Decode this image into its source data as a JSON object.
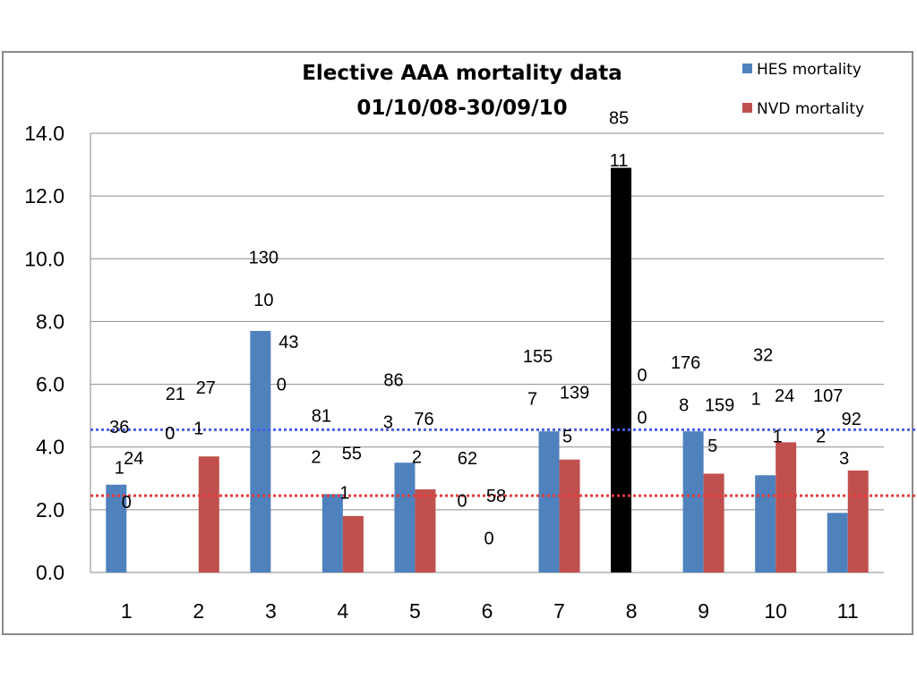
{
  "chart_data": {
    "type": "bar",
    "title": [
      "Elective AAA mortality data",
      "01/10/08-30/09/10"
    ],
    "categories": [
      "1",
      "2",
      "3",
      "4",
      "5",
      "6",
      "7",
      "8",
      "9",
      "10",
      "11"
    ],
    "ylim": [
      0,
      14
    ],
    "yticks": [
      "0.0",
      "2.0",
      "4.0",
      "6.0",
      "8.0",
      "10.0",
      "12.0",
      "14.0"
    ],
    "series": [
      {
        "name": "HES mortality",
        "color": "#4f81bd",
        "values": [
          2.8,
          0,
          7.7,
          2.5,
          3.5,
          0,
          4.5,
          12.9,
          4.5,
          3.1,
          1.9
        ]
      },
      {
        "name": "NVD mortality",
        "color": "#c0504d",
        "values": [
          0,
          3.7,
          0,
          1.8,
          2.65,
          0,
          3.6,
          0,
          3.15,
          4.15,
          3.25
        ]
      }
    ],
    "highlight": {
      "category": "8",
      "series": "HES mortality",
      "color": "#000000"
    },
    "reference_lines": [
      {
        "value": 4.55,
        "color": "#4a5fe8",
        "style": "dotted"
      },
      {
        "value": 2.45,
        "color": "#e83a3a",
        "style": "dotted"
      }
    ],
    "legend_position": "top-right",
    "grid": true,
    "annotations": [
      {
        "text": "36",
        "cat": 0,
        "y": 4.45
      },
      {
        "text": "1",
        "cat": 0,
        "y": 3.15
      },
      {
        "text": "24",
        "cat": 0,
        "dx": 16,
        "y": 3.45
      },
      {
        "text": "0",
        "cat": 0,
        "dx": 8,
        "y": 2.05
      },
      {
        "text": "21",
        "cat": 1,
        "dx": -18,
        "y": 5.5
      },
      {
        "text": "27",
        "cat": 1,
        "dx": 16,
        "y": 5.7
      },
      {
        "text": "0",
        "cat": 1,
        "dx": -24,
        "y": 4.25
      },
      {
        "text": "1",
        "cat": 1,
        "dx": 8,
        "y": 4.4
      },
      {
        "text": "130",
        "cat": 2,
        "y": 9.85
      },
      {
        "text": "10",
        "cat": 2,
        "y": 8.5
      },
      {
        "text": "43",
        "cat": 2,
        "dx": 28,
        "y": 7.15
      },
      {
        "text": "0",
        "cat": 2,
        "dx": 20,
        "y": 5.8
      },
      {
        "text": "81",
        "cat": 3,
        "dx": -16,
        "y": 4.8
      },
      {
        "text": "2",
        "cat": 3,
        "dx": -22,
        "y": 3.5
      },
      {
        "text": "55",
        "cat": 3,
        "dx": 18,
        "y": 3.6
      },
      {
        "text": "1",
        "cat": 3,
        "dx": 10,
        "y": 2.35
      },
      {
        "text": "86",
        "cat": 4,
        "dx": -16,
        "y": 5.95
      },
      {
        "text": "3",
        "cat": 4,
        "dx": -22,
        "y": 4.6
      },
      {
        "text": "76",
        "cat": 4,
        "dx": 18,
        "y": 4.7
      },
      {
        "text": "2",
        "cat": 4,
        "dx": 10,
        "y": 3.5
      },
      {
        "text": "62",
        "cat": 5,
        "dx": -14,
        "y": 3.45
      },
      {
        "text": "0",
        "cat": 5,
        "dx": -20,
        "y": 2.1
      },
      {
        "text": "58",
        "cat": 5,
        "dx": 18,
        "y": 2.25
      },
      {
        "text": "0",
        "cat": 5,
        "dx": 10,
        "y": 0.9
      },
      {
        "text": "155",
        "cat": 6,
        "dx": -16,
        "y": 6.7
      },
      {
        "text": "7",
        "cat": 6,
        "dx": -22,
        "y": 5.35
      },
      {
        "text": "139",
        "cat": 6,
        "dx": 25,
        "y": 5.55
      },
      {
        "text": "5",
        "cat": 6,
        "dx": 17,
        "y": 4.15
      },
      {
        "text": "85",
        "cat": 7,
        "dx": -6,
        "y": 14.3
      },
      {
        "text": "11",
        "cat": 7,
        "dx": -6,
        "y": 12.95
      },
      {
        "text": "0",
        "cat": 7,
        "dx": 20,
        "y": 6.1
      },
      {
        "text": "0",
        "cat": 7,
        "dx": 20,
        "y": 4.75
      },
      {
        "text": "176",
        "cat": 8,
        "dx": -12,
        "y": 6.5
      },
      {
        "text": "8",
        "cat": 8,
        "dx": -14,
        "y": 5.15
      },
      {
        "text": "159",
        "cat": 8,
        "dx": 26,
        "y": 5.15
      },
      {
        "text": "5",
        "cat": 8,
        "dx": 18,
        "y": 3.85
      },
      {
        "text": "32",
        "cat": 9,
        "dx": -6,
        "y": 6.75
      },
      {
        "text": "1",
        "cat": 9,
        "dx": -14,
        "y": 5.35
      },
      {
        "text": "24",
        "cat": 9,
        "dx": 18,
        "y": 5.45
      },
      {
        "text": "1",
        "cat": 9,
        "dx": 10,
        "y": 4.15
      },
      {
        "text": "107",
        "cat": 10,
        "dx": -14,
        "y": 5.45
      },
      {
        "text": "2",
        "cat": 10,
        "dx": -22,
        "y": 4.15
      },
      {
        "text": "92",
        "cat": 10,
        "dx": 12,
        "y": 4.7
      },
      {
        "text": "3",
        "cat": 10,
        "dx": 4,
        "y": 3.45
      }
    ]
  }
}
